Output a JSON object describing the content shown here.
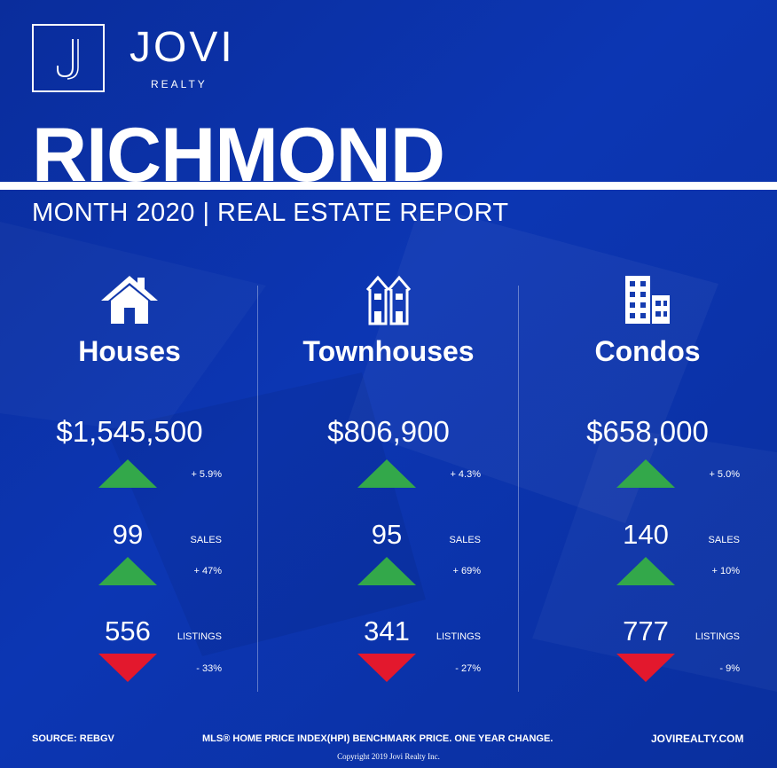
{
  "brand": {
    "name": "JOVI",
    "sub": "REALTY",
    "logo_icon": "j-monogram-icon"
  },
  "city": "RICHMOND",
  "subtitle": "MONTH 2020 | REAL ESTATE REPORT",
  "colors": {
    "background": "#0c36b3",
    "up": "#33a84a",
    "down": "#e3182d",
    "text": "#ffffff"
  },
  "columns": [
    {
      "icon": "house-icon",
      "heading": "Houses",
      "price": "$1,545,500",
      "price_change": "+ 5.9%",
      "price_trend": "up",
      "sales": "99",
      "sales_label": "SALES",
      "sales_change": "+ 47%",
      "sales_trend": "up",
      "listings": "556",
      "listings_label": "LISTINGS",
      "listings_change": "- 33%",
      "listings_trend": "down"
    },
    {
      "icon": "townhouse-icon",
      "heading": "Townhouses",
      "price": "$806,900",
      "price_change": "+ 4.3%",
      "price_trend": "up",
      "sales": "95",
      "sales_label": "SALES",
      "sales_change": "+ 69%",
      "sales_trend": "up",
      "listings": "341",
      "listings_label": "LISTINGS",
      "listings_change": "- 27%",
      "listings_trend": "down"
    },
    {
      "icon": "condo-building-icon",
      "heading": "Condos",
      "price": "$658,000",
      "price_change": "+ 5.0%",
      "price_trend": "up",
      "sales": "140",
      "sales_label": "SALES",
      "sales_change": "+ 10%",
      "sales_trend": "up",
      "listings": "777",
      "listings_label": "LISTINGS",
      "listings_change": "- 9%",
      "listings_trend": "down"
    }
  ],
  "footer": {
    "source": "SOURCE:  REBGV",
    "note": "MLS® HOME PRICE INDEX(HPI) BENCHMARK PRICE. ONE YEAR CHANGE.",
    "website": "JOVIREALTY.COM",
    "copyright": "Copyright 2019 Jovi Realty Inc."
  }
}
